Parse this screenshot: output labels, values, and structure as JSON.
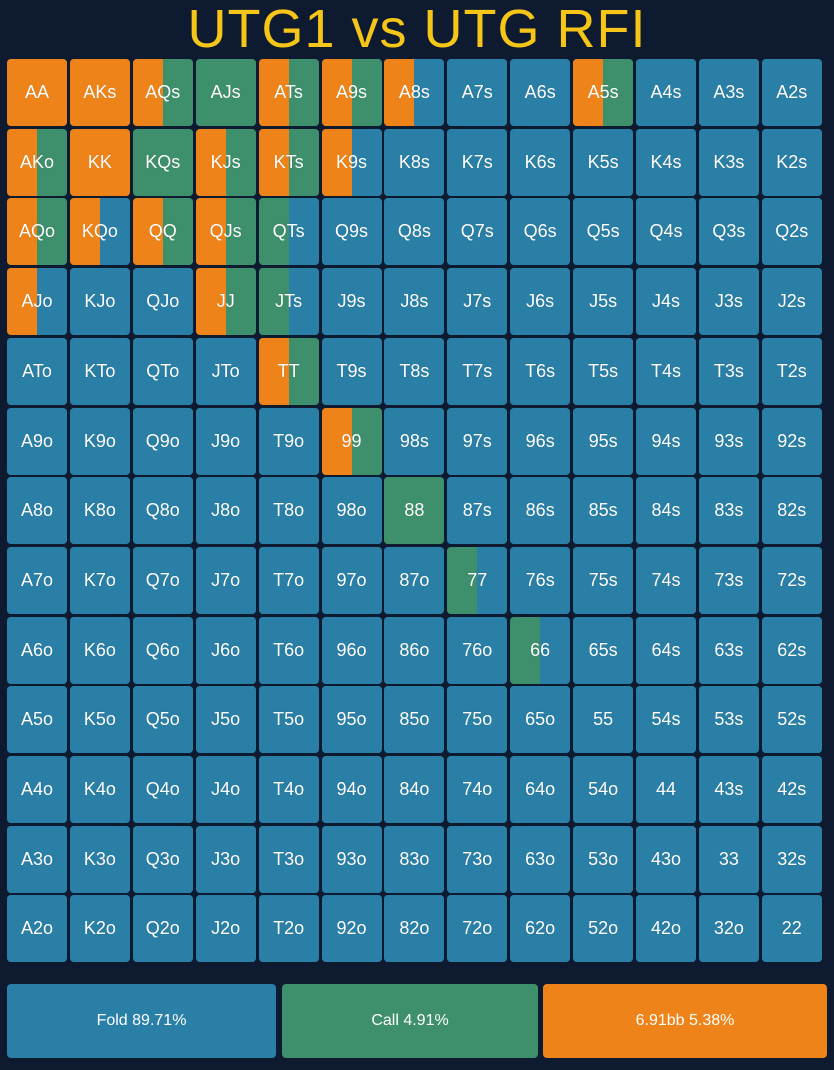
{
  "title": "UTG1 vs UTG RFI",
  "colors": {
    "fold": "#2a7fa6",
    "call": "#3e8f6b",
    "raise": "#ee8419",
    "background": "#0e1a2f",
    "title": "#f5c518"
  },
  "legend": [
    {
      "action": "fold",
      "label": "Fold 89.71%",
      "percent": 89.71
    },
    {
      "action": "call",
      "label": "Call 4.91%",
      "percent": 4.91
    },
    {
      "action": "raise",
      "label": "6.91bb 5.38%",
      "percent": 5.38
    }
  ],
  "chart_data": {
    "type": "heatmap",
    "title": "UTG1 vs UTG RFI",
    "ranks": [
      "A",
      "K",
      "Q",
      "J",
      "T",
      "9",
      "8",
      "7",
      "6",
      "5",
      "4",
      "3",
      "2"
    ],
    "rows": [
      [
        "AA",
        "AKs",
        "AQs",
        "AJs",
        "ATs",
        "A9s",
        "A8s",
        "A7s",
        "A6s",
        "A5s",
        "A4s",
        "A3s",
        "A2s"
      ],
      [
        "AKo",
        "KK",
        "KQs",
        "KJs",
        "KTs",
        "K9s",
        "K8s",
        "K7s",
        "K6s",
        "K5s",
        "K4s",
        "K3s",
        "K2s"
      ],
      [
        "AQo",
        "KQo",
        "QQ",
        "QJs",
        "QTs",
        "Q9s",
        "Q8s",
        "Q7s",
        "Q6s",
        "Q5s",
        "Q4s",
        "Q3s",
        "Q2s"
      ],
      [
        "AJo",
        "KJo",
        "QJo",
        "JJ",
        "JTs",
        "J9s",
        "J8s",
        "J7s",
        "J6s",
        "J5s",
        "J4s",
        "J3s",
        "J2s"
      ],
      [
        "ATo",
        "KTo",
        "QTo",
        "JTo",
        "TT",
        "T9s",
        "T8s",
        "T7s",
        "T6s",
        "T5s",
        "T4s",
        "T3s",
        "T2s"
      ],
      [
        "A9o",
        "K9o",
        "Q9o",
        "J9o",
        "T9o",
        "99",
        "98s",
        "97s",
        "96s",
        "95s",
        "94s",
        "93s",
        "92s"
      ],
      [
        "A8o",
        "K8o",
        "Q8o",
        "J8o",
        "T8o",
        "98o",
        "88",
        "87s",
        "86s",
        "85s",
        "84s",
        "83s",
        "82s"
      ],
      [
        "A7o",
        "K7o",
        "Q7o",
        "J7o",
        "T7o",
        "97o",
        "87o",
        "77",
        "76s",
        "75s",
        "74s",
        "73s",
        "72s"
      ],
      [
        "A6o",
        "K6o",
        "Q6o",
        "J6o",
        "T6o",
        "96o",
        "86o",
        "76o",
        "66",
        "65s",
        "64s",
        "63s",
        "62s"
      ],
      [
        "A5o",
        "K5o",
        "Q5o",
        "J5o",
        "T5o",
        "95o",
        "85o",
        "75o",
        "65o",
        "55",
        "54s",
        "53s",
        "52s"
      ],
      [
        "A4o",
        "K4o",
        "Q4o",
        "J4o",
        "T4o",
        "94o",
        "84o",
        "74o",
        "64o",
        "54o",
        "44",
        "43s",
        "42s"
      ],
      [
        "A3o",
        "K3o",
        "Q3o",
        "J3o",
        "T3o",
        "93o",
        "83o",
        "73o",
        "63o",
        "53o",
        "43o",
        "33",
        "32s"
      ],
      [
        "A2o",
        "K2o",
        "Q2o",
        "J2o",
        "T2o",
        "92o",
        "82o",
        "72o",
        "62o",
        "52o",
        "42o",
        "32o",
        "22"
      ]
    ],
    "strategy": {
      "AA": {
        "raise": 100,
        "call": 0,
        "fold": 0
      },
      "AKs": {
        "raise": 100,
        "call": 0,
        "fold": 0
      },
      "AQs": {
        "raise": 50,
        "call": 50,
        "fold": 0
      },
      "AJs": {
        "raise": 0,
        "call": 100,
        "fold": 0
      },
      "ATs": {
        "raise": 50,
        "call": 50,
        "fold": 0
      },
      "A9s": {
        "raise": 50,
        "call": 50,
        "fold": 0
      },
      "A8s": {
        "raise": 50,
        "call": 0,
        "fold": 50
      },
      "A5s": {
        "raise": 50,
        "call": 50,
        "fold": 0
      },
      "AKo": {
        "raise": 50,
        "call": 50,
        "fold": 0
      },
      "KK": {
        "raise": 100,
        "call": 0,
        "fold": 0
      },
      "KQs": {
        "raise": 0,
        "call": 100,
        "fold": 0
      },
      "KJs": {
        "raise": 50,
        "call": 50,
        "fold": 0
      },
      "KTs": {
        "raise": 50,
        "call": 50,
        "fold": 0
      },
      "K9s": {
        "raise": 50,
        "call": 0,
        "fold": 50
      },
      "AQo": {
        "raise": 50,
        "call": 50,
        "fold": 0
      },
      "KQo": {
        "raise": 50,
        "call": 0,
        "fold": 50
      },
      "QQ": {
        "raise": 50,
        "call": 50,
        "fold": 0
      },
      "QJs": {
        "raise": 50,
        "call": 50,
        "fold": 0
      },
      "QTs": {
        "raise": 0,
        "call": 50,
        "fold": 50
      },
      "AJo": {
        "raise": 50,
        "call": 0,
        "fold": 50
      },
      "JJ": {
        "raise": 50,
        "call": 50,
        "fold": 0
      },
      "JTs": {
        "raise": 0,
        "call": 50,
        "fold": 50
      },
      "TT": {
        "raise": 50,
        "call": 50,
        "fold": 0
      },
      "99": {
        "raise": 50,
        "call": 50,
        "fold": 0
      },
      "88": {
        "raise": 0,
        "call": 100,
        "fold": 0
      },
      "77": {
        "raise": 0,
        "call": 50,
        "fold": 50
      },
      "66": {
        "raise": 0,
        "call": 50,
        "fold": 50
      }
    },
    "default": {
      "raise": 0,
      "call": 0,
      "fold": 100
    }
  }
}
